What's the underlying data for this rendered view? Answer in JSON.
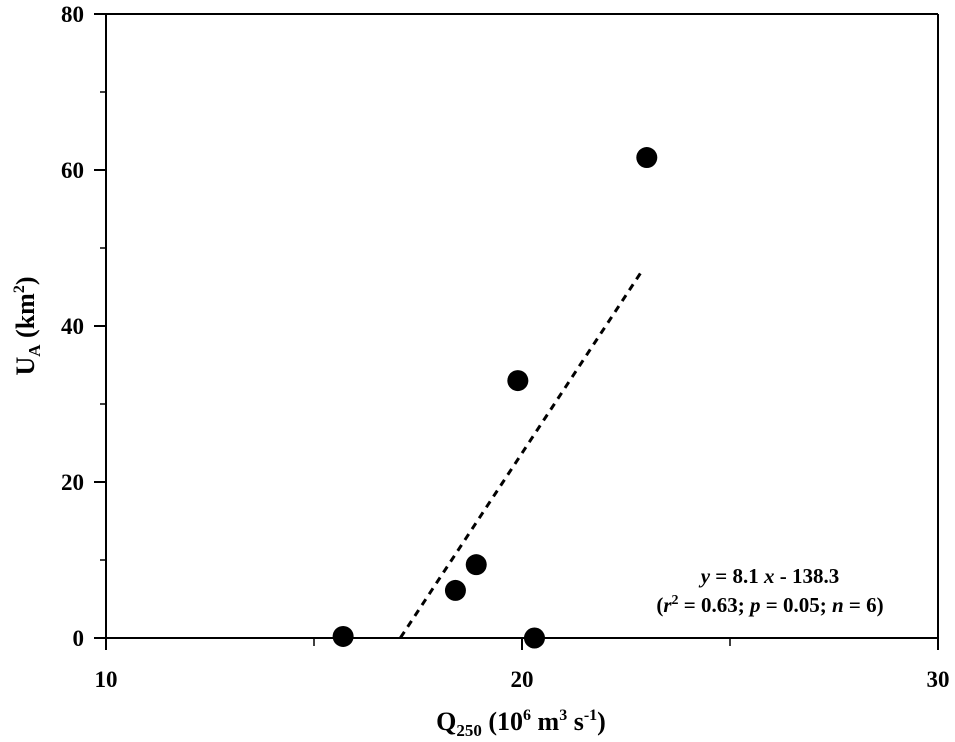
{
  "chart_data": {
    "type": "scatter",
    "title": "",
    "xlabel": {
      "main": "Q",
      "sub": "250",
      "unit_open": " (10",
      "unit_sup1": "6",
      "unit_mid": " m",
      "unit_sup2": "3",
      "unit_mid2": " s",
      "unit_sup3": "-1",
      "unit_close": ")"
    },
    "ylabel": {
      "main": "U",
      "sub": "A",
      "unit_open": " (km",
      "unit_sup": "2",
      "unit_close": ")"
    },
    "xlim": [
      10,
      30
    ],
    "ylim": [
      0,
      80
    ],
    "x_ticks": [
      10,
      20,
      30
    ],
    "x_tick_labels": [
      "10",
      "20",
      "30"
    ],
    "x_minor_ticks": [
      15,
      25
    ],
    "y_ticks": [
      0,
      20,
      40,
      60,
      80
    ],
    "y_tick_labels": [
      "0",
      "20",
      "40",
      "60",
      "80"
    ],
    "y_minor_ticks": [
      10,
      30,
      50,
      70
    ],
    "grid": false,
    "points": [
      {
        "x": 15.7,
        "y": 0.2
      },
      {
        "x": 18.4,
        "y": 6.1
      },
      {
        "x": 18.9,
        "y": 9.4
      },
      {
        "x": 19.9,
        "y": 33.0
      },
      {
        "x": 20.3,
        "y": 0.0
      },
      {
        "x": 23.0,
        "y": 61.6
      }
    ],
    "regression": {
      "slope": 8.1,
      "intercept": -138.3,
      "x_range": [
        17.08,
        22.9
      ],
      "style": "dashed"
    },
    "annotation": {
      "line1": {
        "y": "y",
        "eq": " = 8.1 ",
        "x": "x",
        "rest": " - 138.3"
      },
      "line2": {
        "open": "(",
        "r": "r",
        "r_sup": "2",
        "r_val": " = 0.63; ",
        "p": "p",
        "p_val": " = 0.05; ",
        "n": "n",
        "n_val": " = 6)"
      }
    }
  }
}
